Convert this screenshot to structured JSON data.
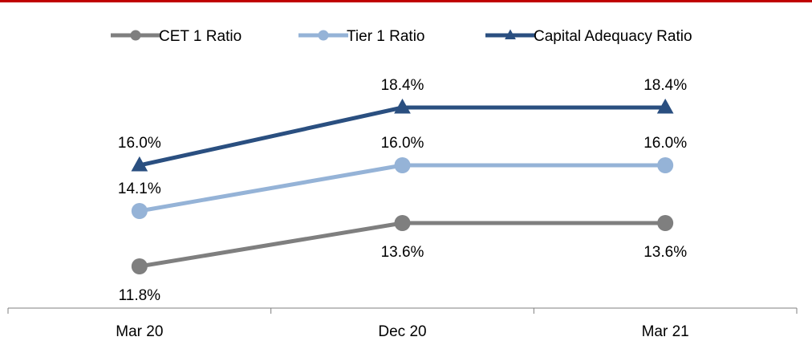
{
  "colors": {
    "top_rule": "#c00000",
    "axis": "#7f7f7f",
    "text": "#000000"
  },
  "chart_data": {
    "type": "line",
    "categories": [
      "Mar 20",
      "Dec 20",
      "Mar 21"
    ],
    "ylim": [
      10,
      20
    ],
    "grid": false,
    "legend": "top",
    "series": [
      {
        "name": "CET 1 Ratio",
        "values": [
          11.8,
          13.6,
          13.6
        ],
        "labels": [
          "11.8%",
          "13.6%",
          "13.6%"
        ],
        "label_position": "below",
        "color": "#7f7f7f",
        "marker": "circle"
      },
      {
        "name": "Tier 1 Ratio",
        "values": [
          14.1,
          16.0,
          16.0
        ],
        "labels": [
          "14.1%",
          "16.0%",
          "16.0%"
        ],
        "label_position": "above",
        "color": "#95b3d7",
        "marker": "circle"
      },
      {
        "name": "Capital Adequacy Ratio",
        "values": [
          16.0,
          18.4,
          18.4
        ],
        "labels": [
          "16.0%",
          "18.4%",
          "18.4%"
        ],
        "label_position": "above",
        "color": "#2a4f80",
        "marker": "triangle"
      }
    ]
  }
}
